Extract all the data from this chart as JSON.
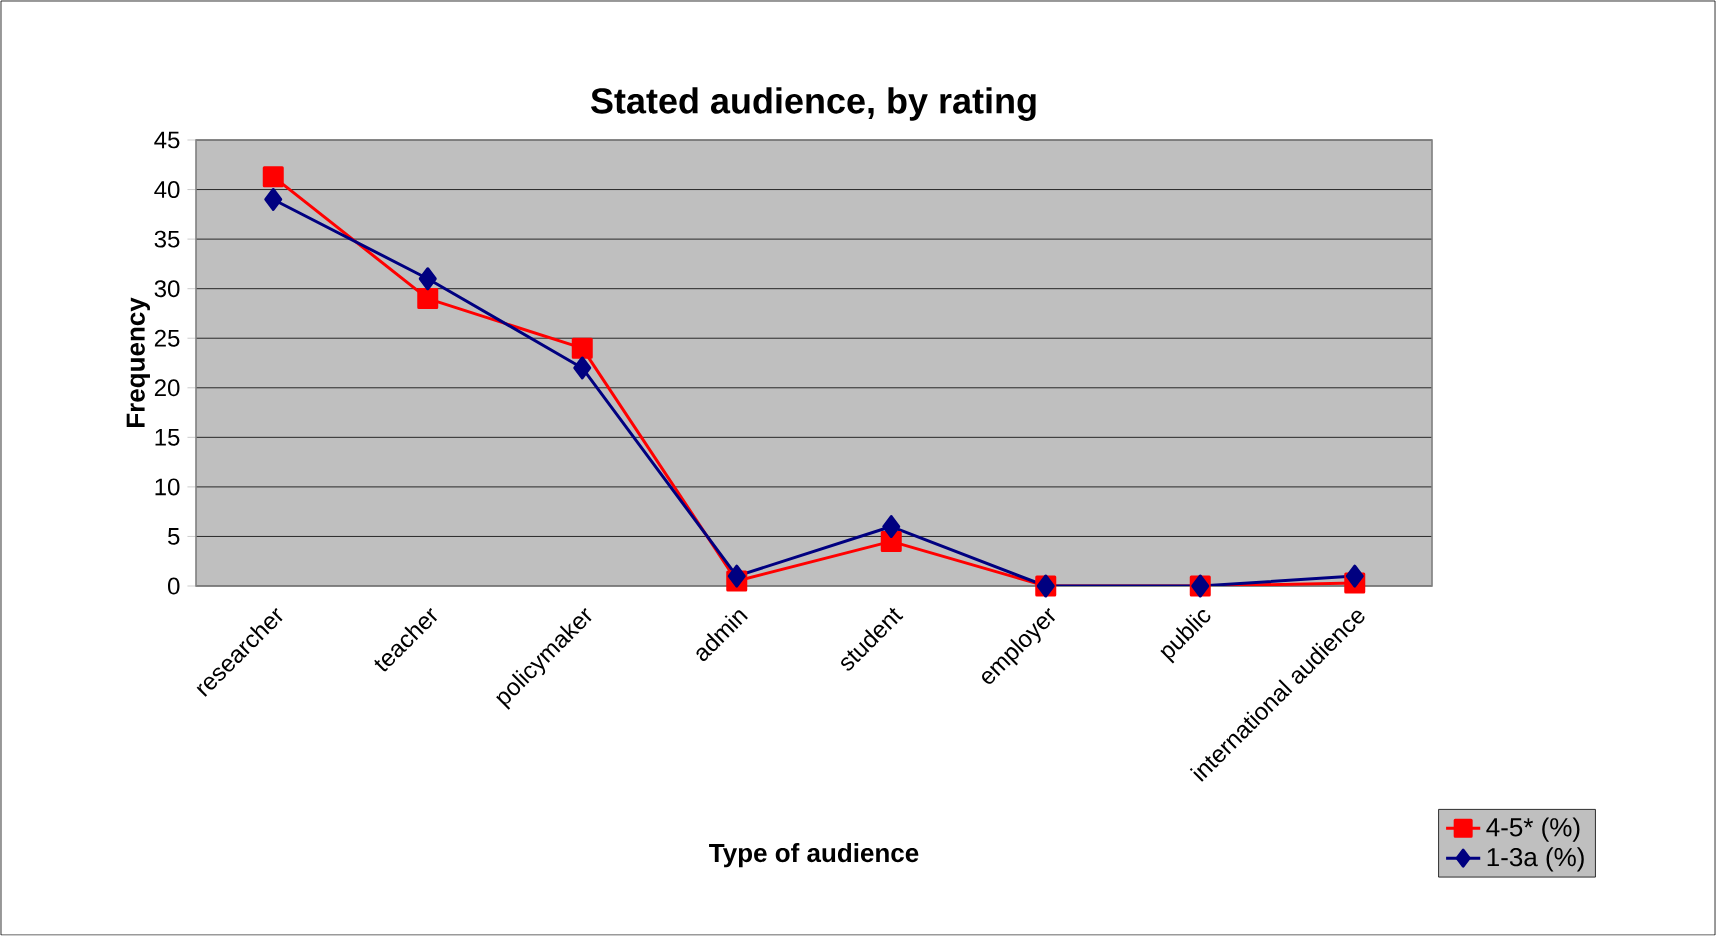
{
  "chart_data": {
    "type": "line",
    "title": "Stated audience, by rating",
    "xlabel": "Type of audience",
    "ylabel": "Frequency",
    "categories": [
      "researcher",
      "teacher",
      "policymaker",
      "admin",
      "student",
      "employer",
      "public",
      "international audience"
    ],
    "series": [
      {
        "name": "4-5* (%)",
        "color": "#ff0000",
        "marker": "square",
        "values": [
          41.3,
          29,
          24,
          0.5,
          4.5,
          0,
          0,
          0.3
        ]
      },
      {
        "name": "1-3a (%)",
        "color": "#000080",
        "marker": "diamond",
        "values": [
          39,
          31,
          22,
          1,
          6,
          0,
          0,
          1
        ]
      }
    ],
    "ylim": [
      0,
      45
    ],
    "yticks": [
      0,
      5,
      10,
      15,
      20,
      25,
      30,
      35,
      40,
      45
    ],
    "grid": "y",
    "legend": "bottom right",
    "line_style": "solid"
  }
}
